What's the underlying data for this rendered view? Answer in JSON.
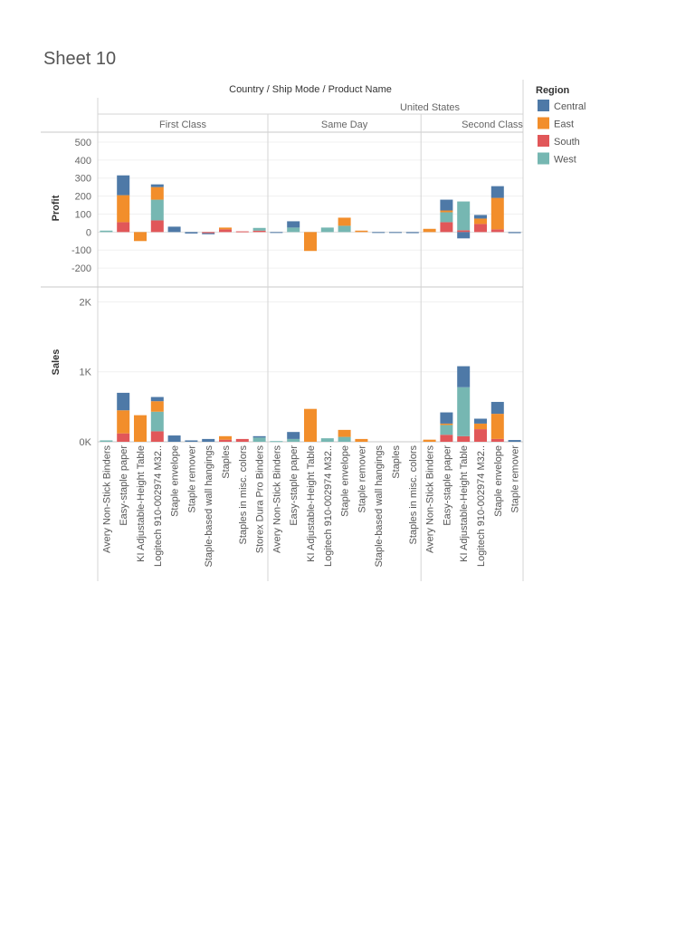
{
  "sheet": {
    "title": "Sheet 10"
  },
  "header": {
    "row_dims": [
      "Country",
      "Ship Mode",
      "Product Name"
    ],
    "separator": "/",
    "country": "United States",
    "ship_modes": [
      "First Class",
      "Same Day",
      "Second Class"
    ]
  },
  "legend": {
    "title": "Region",
    "items": [
      {
        "label": "Central",
        "color": "#4e79a7"
      },
      {
        "label": "East",
        "color": "#f28e2b"
      },
      {
        "label": "South",
        "color": "#e15759"
      },
      {
        "label": "West",
        "color": "#76b7b2"
      }
    ]
  },
  "chart_data": {
    "type": "bar",
    "stacked": true,
    "facets": [
      {
        "name": "First Class",
        "categories": [
          "Avery Non-Stick Binders",
          "Easy-staple paper",
          "KI Adjustable-Height Table",
          "Logitech 910-002974 M32..",
          "Staple envelope",
          "Staple remover",
          "Staple-based wall hangings",
          "Staples",
          "Staples in misc. colors",
          "Storex Dura Pro Binders"
        ]
      },
      {
        "name": "Same Day",
        "categories": [
          "Avery Non-Stick Binders",
          "Easy-staple paper",
          "KI Adjustable-Height Table",
          "Logitech 910-002974 M32..",
          "Staple envelope",
          "Staple remover",
          "Staple-based wall hangings",
          "Staples",
          "Staples in misc. colors"
        ]
      },
      {
        "name": "Second Class",
        "categories": [
          "Avery Non-Stick Binders",
          "Easy-staple paper",
          "KI Adjustable-Height Table",
          "Logitech 910-002974 M32..",
          "Staple envelope",
          "Staple remover"
        ]
      }
    ],
    "series_order": [
      "South",
      "West",
      "East",
      "Central"
    ],
    "panels": [
      {
        "measure": "Profit",
        "ylim": [
          -300,
          550
        ],
        "ticks": [
          500,
          400,
          300,
          200,
          100,
          0,
          -100,
          -200
        ],
        "tick_labels": [
          "500",
          "400",
          "300",
          "200",
          "100",
          "0",
          "-100",
          "-200"
        ],
        "values": [
          [
            {
              "West": 8
            },
            {
              "South": 55,
              "East": 150,
              "Central": 110
            },
            {
              "East": -50
            },
            {
              "West": 115,
              "South": 65,
              "East": 70,
              "Central": 15
            },
            {
              "Central": 30
            },
            {
              "Central": -8
            },
            {
              "South": -6,
              "Central": -6
            },
            {
              "South": 15,
              "East": 10
            },
            {
              "South": 4
            },
            {
              "West": 15,
              "South": 8
            }
          ],
          [
            {
              "Central": -5
            },
            {
              "West": 25,
              "Central": 35
            },
            {
              "East": -105
            },
            {
              "West": 25
            },
            {
              "West": 35,
              "East": 45
            },
            {
              "East": 8
            },
            {
              "Central": -4
            },
            {
              "Central": -4
            },
            {
              "Central": -6
            }
          ],
          [
            {
              "East": 18
            },
            {
              "West": 55,
              "South": 55,
              "East": 10,
              "Central": 60
            },
            {
              "South": 10,
              "West": 160,
              "Central": -35
            },
            {
              "South": 45,
              "East": 30,
              "Central": 20
            },
            {
              "South": 15,
              "East": 175,
              "Central": 65
            },
            {
              "Central": -6
            }
          ]
        ]
      },
      {
        "measure": "Sales",
        "ylim": [
          0,
          2200
        ],
        "ticks": [
          2000,
          1000,
          0
        ],
        "tick_labels": [
          "2K",
          "1K",
          "0K"
        ],
        "values": [
          [
            {
              "West": 20
            },
            {
              "South": 120,
              "East": 330,
              "Central": 250
            },
            {
              "East": 380
            },
            {
              "West": 280,
              "South": 150,
              "East": 150,
              "Central": 60
            },
            {
              "Central": 90
            },
            {
              "Central": 20
            },
            {
              "Central": 40
            },
            {
              "South": 30,
              "East": 50
            },
            {
              "South": 40
            },
            {
              "West": 60,
              "Central": 20
            }
          ],
          [
            {
              "West": 10
            },
            {
              "West": 40,
              "Central": 100
            },
            {
              "East": 470
            },
            {
              "West": 50
            },
            {
              "West": 70,
              "East": 100
            },
            {
              "East": 40
            },
            {},
            {},
            {}
          ],
          [
            {
              "East": 30
            },
            {
              "West": 140,
              "South": 100,
              "East": 20,
              "Central": 160
            },
            {
              "West": 700,
              "South": 80,
              "Central": 300
            },
            {
              "South": 180,
              "East": 80,
              "Central": 70
            },
            {
              "South": 40,
              "East": 360,
              "Central": 170
            },
            {
              "Central": 25
            }
          ]
        ]
      }
    ]
  }
}
